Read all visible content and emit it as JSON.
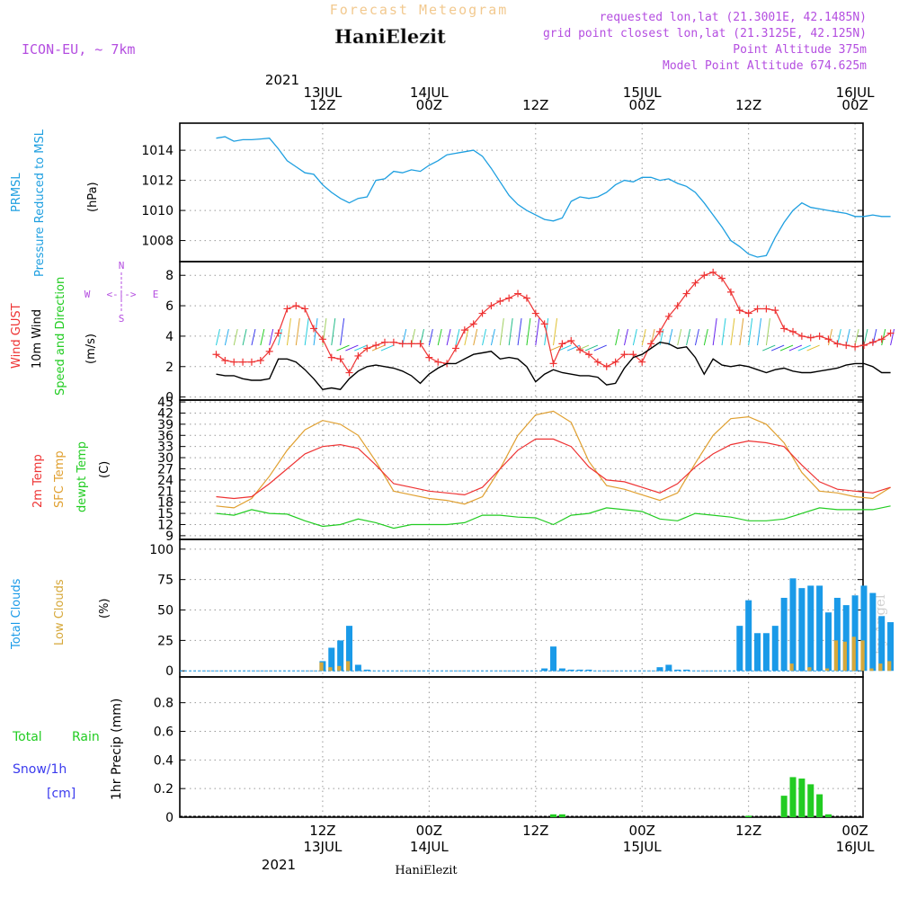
{
  "header": {
    "forecast_title": "Forecast Meteogram",
    "location_name": "HaniElezit",
    "model_label": "ICON-EU, ~ 7km",
    "requested_point": "requested lon,lat (21.3001E, 42.1485N)",
    "grid_point": "grid point closest lon,lat (21.3125E, 42.125N)",
    "point_altitude": "Point Altitude 375m",
    "model_altitude": "Model Point Altitude 674.625m",
    "footer_location": "HaniElezit",
    "watermark": "by Angel"
  },
  "time_axis": {
    "year": "2021",
    "ticks": [
      {
        "hour": 12,
        "top": "12Z",
        "date": "13JUL"
      },
      {
        "hour": 24,
        "top": "00Z",
        "date": "14JUL"
      },
      {
        "hour": 36,
        "top": "12Z",
        "date": ""
      },
      {
        "hour": 48,
        "top": "00Z",
        "date": "15JUL"
      },
      {
        "hour": 60,
        "top": "12Z",
        "date": ""
      },
      {
        "hour": 72,
        "top": "00Z",
        "date": "16JUL"
      }
    ]
  },
  "panel_labels": {
    "pressure": [
      "PRMSL",
      "Pressure Reduced to MSL",
      "(hPa)"
    ],
    "wind": [
      "Wind GUST",
      "10m Wind",
      "Speed and Direction",
      "(m/s)"
    ],
    "compass": [
      "N",
      "S",
      "W",
      "E",
      "<-|->"
    ],
    "temp": [
      "2m Temp",
      "SFC Temp",
      "dewpt Temp",
      "(C)"
    ],
    "cloud": [
      "Total Clouds",
      "Low Clouds",
      "(%)"
    ],
    "rain": [
      "Total",
      "Rain",
      "Snow/1h",
      "[cm]",
      "1hr Precip (mm)"
    ]
  },
  "colors": {
    "pressure": "#1e9fe0",
    "gust": "#ee3333",
    "wind": "#000000",
    "sfc_temp": "#e0a030",
    "temp2m": "#ee3333",
    "dewpoint": "#22cc22",
    "total_clouds": "#1a9ae8",
    "low_clouds": "#d6a83a",
    "rain": "#22cc22",
    "purple": "#b44ee0",
    "snow": "#3a3aee"
  },
  "chart_data": [
    {
      "type": "line",
      "panel": "pressure",
      "ylabel": "(hPa)",
      "ylim": [
        1006.6,
        1015.8
      ],
      "yticks": [
        1008,
        1010,
        1012,
        1014
      ],
      "series": [
        {
          "name": "PRMSL",
          "x": [
            0,
            1,
            2,
            3,
            4,
            5,
            6,
            7,
            8,
            9,
            10,
            11,
            12,
            13,
            14,
            15,
            16,
            17,
            18,
            19,
            20,
            21,
            22,
            23,
            24,
            25,
            26,
            27,
            28,
            29,
            30,
            31,
            32,
            33,
            34,
            35,
            36,
            37,
            38,
            39,
            40,
            41,
            42,
            43,
            44,
            45,
            46,
            47,
            48,
            49,
            50,
            51,
            52,
            53,
            54,
            55,
            56,
            57,
            58,
            59,
            60,
            61,
            62,
            63,
            64,
            65,
            66,
            67,
            68,
            69,
            70,
            71,
            72,
            73,
            74,
            75,
            76
          ],
          "values": [
            1014.8,
            1014.9,
            1014.6,
            1014.7,
            1014.7,
            1014.75,
            1014.8,
            1014.1,
            1013.3,
            1012.9,
            1012.5,
            1012.4,
            1011.7,
            1011.2,
            1010.8,
            1010.5,
            1010.8,
            1010.9,
            1012.0,
            1012.1,
            1012.6,
            1012.5,
            1012.7,
            1012.6,
            1013.0,
            1013.3,
            1013.7,
            1013.8,
            1013.9,
            1014.0,
            1013.6,
            1012.8,
            1011.9,
            1011.0,
            1010.4,
            1010.0,
            1009.7,
            1009.4,
            1009.3,
            1009.5,
            1010.6,
            1010.9,
            1010.8,
            1010.9,
            1011.2,
            1011.7,
            1012.0,
            1011.9,
            1012.2,
            1012.2,
            1012.0,
            1012.1,
            1011.8,
            1011.6,
            1011.2,
            1010.5,
            1009.7,
            1008.9,
            1008.0,
            1007.6,
            1007.1,
            1006.9,
            1007.0,
            1008.2,
            1009.2,
            1010.0,
            1010.5,
            1010.2,
            1010.1,
            1010.0,
            1009.9,
            1009.8,
            1009.6,
            1009.6,
            1009.7,
            1009.6,
            1009.6
          ]
        }
      ]
    },
    {
      "type": "line",
      "panel": "wind",
      "ylabel": "(m/s)",
      "ylim": [
        -0.2,
        8.9
      ],
      "yticks": [
        0,
        2,
        4,
        6,
        8
      ],
      "series": [
        {
          "name": "Wind GUST",
          "x": [
            0,
            1,
            2,
            3,
            4,
            5,
            6,
            7,
            8,
            9,
            10,
            11,
            12,
            13,
            14,
            15,
            16,
            17,
            18,
            19,
            20,
            21,
            22,
            23,
            24,
            25,
            26,
            27,
            28,
            29,
            30,
            31,
            32,
            33,
            34,
            35,
            36,
            37,
            38,
            39,
            40,
            41,
            42,
            43,
            44,
            45,
            46,
            47,
            48,
            49,
            50,
            51,
            52,
            53,
            54,
            55,
            56,
            57,
            58,
            59,
            60,
            61,
            62,
            63,
            64,
            65,
            66,
            67,
            68,
            69,
            70,
            71,
            72,
            73,
            74,
            75,
            76
          ],
          "values": [
            2.8,
            2.4,
            2.3,
            2.3,
            2.3,
            2.4,
            3.0,
            4.2,
            5.8,
            6.0,
            5.8,
            4.5,
            3.8,
            2.6,
            2.5,
            1.6,
            2.7,
            3.2,
            3.4,
            3.6,
            3.6,
            3.5,
            3.5,
            3.5,
            2.6,
            2.3,
            2.2,
            3.2,
            4.4,
            4.8,
            5.5,
            6.0,
            6.3,
            6.5,
            6.8,
            6.5,
            5.5,
            4.8,
            2.2,
            3.5,
            3.7,
            3.1,
            2.8,
            2.3,
            2.0,
            2.3,
            2.8,
            2.8,
            2.3,
            3.5,
            4.3,
            5.3,
            6.0,
            6.8,
            7.5,
            8.0,
            8.2,
            7.8,
            6.9,
            5.7,
            5.5,
            5.8,
            5.8,
            5.7,
            4.5,
            4.3,
            4.0,
            3.9,
            4.0,
            3.8,
            3.5,
            3.4,
            3.3,
            3.4,
            3.6,
            3.8,
            4.2
          ]
        },
        {
          "name": "10m Wind",
          "x": [
            0,
            1,
            2,
            3,
            4,
            5,
            6,
            7,
            8,
            9,
            10,
            11,
            12,
            13,
            14,
            15,
            16,
            17,
            18,
            19,
            20,
            21,
            22,
            23,
            24,
            25,
            26,
            27,
            28,
            29,
            30,
            31,
            32,
            33,
            34,
            35,
            36,
            37,
            38,
            39,
            40,
            41,
            42,
            43,
            44,
            45,
            46,
            47,
            48,
            49,
            50,
            51,
            52,
            53,
            54,
            55,
            56,
            57,
            58,
            59,
            60,
            61,
            62,
            63,
            64,
            65,
            66,
            67,
            68,
            69,
            70,
            71,
            72,
            73,
            74,
            75,
            76
          ],
          "values": [
            1.5,
            1.4,
            1.4,
            1.2,
            1.1,
            1.1,
            1.2,
            2.5,
            2.5,
            2.3,
            1.8,
            1.2,
            0.5,
            0.6,
            0.5,
            1.2,
            1.7,
            2.0,
            2.1,
            2.0,
            1.9,
            1.7,
            1.4,
            0.9,
            1.5,
            1.9,
            2.2,
            2.2,
            2.5,
            2.8,
            2.9,
            3.0,
            2.5,
            2.6,
            2.5,
            2.0,
            1.0,
            1.5,
            1.8,
            1.6,
            1.5,
            1.4,
            1.4,
            1.3,
            0.8,
            0.9,
            1.9,
            2.6,
            2.8,
            3.2,
            3.6,
            3.5,
            3.2,
            3.3,
            2.6,
            1.5,
            2.5,
            2.1,
            2.0,
            2.1,
            2.0,
            1.8,
            1.6,
            1.8,
            1.9,
            1.7,
            1.6,
            1.6,
            1.7,
            1.8,
            1.9,
            2.1,
            2.2,
            2.2,
            2.0,
            1.6,
            1.6
          ]
        }
      ]
    },
    {
      "type": "line",
      "panel": "temperature",
      "ylabel": "(C)",
      "ylim": [
        8,
        45.5
      ],
      "yticks": [
        9,
        12,
        15,
        18,
        21,
        24,
        27,
        30,
        33,
        36,
        39,
        42,
        45
      ],
      "series": [
        {
          "name": "2m Temp",
          "x": [
            0,
            2,
            4,
            6,
            8,
            10,
            12,
            14,
            16,
            18,
            20,
            22,
            24,
            26,
            28,
            30,
            32,
            34,
            36,
            38,
            40,
            42,
            44,
            46,
            48,
            50,
            52,
            54,
            56,
            58,
            60,
            62,
            64,
            66,
            68,
            70,
            72,
            74,
            76
          ],
          "values": [
            19.5,
            19.0,
            19.5,
            23.0,
            27.0,
            31.0,
            33.0,
            33.5,
            32.5,
            28.0,
            23.0,
            22.0,
            21.0,
            20.5,
            20.0,
            22.0,
            27.0,
            32.0,
            35.0,
            35.0,
            33.0,
            27.5,
            24.0,
            23.5,
            22.0,
            20.5,
            23.0,
            27.5,
            31.0,
            33.5,
            34.5,
            34.0,
            33.0,
            28.0,
            23.5,
            21.5,
            21.0,
            20.5,
            22.0
          ]
        },
        {
          "name": "SFC Temp",
          "x": [
            0,
            2,
            4,
            6,
            8,
            10,
            12,
            14,
            16,
            18,
            20,
            22,
            24,
            26,
            28,
            30,
            32,
            34,
            36,
            38,
            40,
            42,
            44,
            46,
            48,
            50,
            52,
            54,
            56,
            58,
            60,
            62,
            64,
            66,
            68,
            70,
            72,
            74,
            76
          ],
          "values": [
            17.0,
            16.5,
            19.0,
            25.0,
            32.0,
            37.5,
            40.0,
            39.0,
            36.0,
            29.0,
            21.0,
            20.0,
            19.0,
            18.5,
            17.5,
            19.5,
            27.0,
            36.0,
            41.5,
            42.5,
            39.5,
            29.0,
            22.5,
            21.5,
            20.0,
            18.5,
            20.5,
            28.5,
            36.0,
            40.5,
            41.0,
            39.0,
            34.0,
            26.0,
            21.0,
            20.5,
            19.5,
            19.0,
            22.0
          ]
        },
        {
          "name": "dewpt Temp",
          "x": [
            0,
            2,
            4,
            6,
            8,
            10,
            12,
            14,
            16,
            18,
            20,
            22,
            24,
            26,
            28,
            30,
            32,
            34,
            36,
            38,
            40,
            42,
            44,
            46,
            48,
            50,
            52,
            54,
            56,
            58,
            60,
            62,
            64,
            66,
            68,
            70,
            72,
            74,
            76
          ],
          "values": [
            15.0,
            14.5,
            16.0,
            15.0,
            14.8,
            13.0,
            11.5,
            12.0,
            13.5,
            12.5,
            11.0,
            12.0,
            12.0,
            12.0,
            12.5,
            14.5,
            14.5,
            14.0,
            13.8,
            12.0,
            14.5,
            15.0,
            16.5,
            16.0,
            15.5,
            13.5,
            13.0,
            15.0,
            14.5,
            14.0,
            13.0,
            13.0,
            13.5,
            15.0,
            16.5,
            16.0,
            16.0,
            16.0,
            17.0
          ]
        }
      ]
    },
    {
      "type": "bar",
      "panel": "clouds",
      "ylabel": "(%)",
      "ylim": [
        -5,
        108
      ],
      "yticks": [
        0,
        25,
        50,
        75,
        100
      ],
      "series": [
        {
          "name": "Total Clouds",
          "x": [
            12,
            13,
            14,
            15,
            16,
            17,
            37,
            38,
            39,
            40,
            41,
            42,
            50,
            51,
            52,
            53,
            59,
            60,
            61,
            62,
            63,
            64,
            65,
            66,
            67,
            68,
            69,
            70,
            71,
            72,
            73,
            74,
            75,
            76
          ],
          "values": [
            8,
            19,
            25,
            37,
            5,
            1,
            2,
            20,
            2,
            1,
            1,
            1,
            3,
            5,
            1,
            1,
            37,
            58,
            31,
            31,
            37,
            60,
            76,
            68,
            70,
            70,
            48,
            60,
            54,
            62,
            70,
            64,
            45,
            40
          ]
        },
        {
          "name": "Low Clouds",
          "x": [
            12,
            13,
            14,
            15,
            65,
            67,
            69,
            70,
            71,
            72,
            73,
            74,
            75,
            76
          ],
          "values": [
            7,
            3,
            4,
            8,
            6,
            3,
            2,
            25,
            24,
            28,
            25,
            2,
            6,
            8
          ]
        }
      ]
    },
    {
      "type": "bar",
      "panel": "precip",
      "ylabel": "1hr Precip (mm)",
      "ylim": [
        0,
        0.98
      ],
      "yticks": [
        0,
        0.2,
        0.4,
        0.6,
        0.8
      ],
      "series": [
        {
          "name": "Total Rain",
          "x": [
            38,
            39,
            60,
            64,
            65,
            66,
            67,
            68,
            69
          ],
          "values": [
            0.02,
            0.02,
            0.01,
            0.15,
            0.28,
            0.27,
            0.23,
            0.16,
            0.02
          ]
        }
      ]
    }
  ]
}
